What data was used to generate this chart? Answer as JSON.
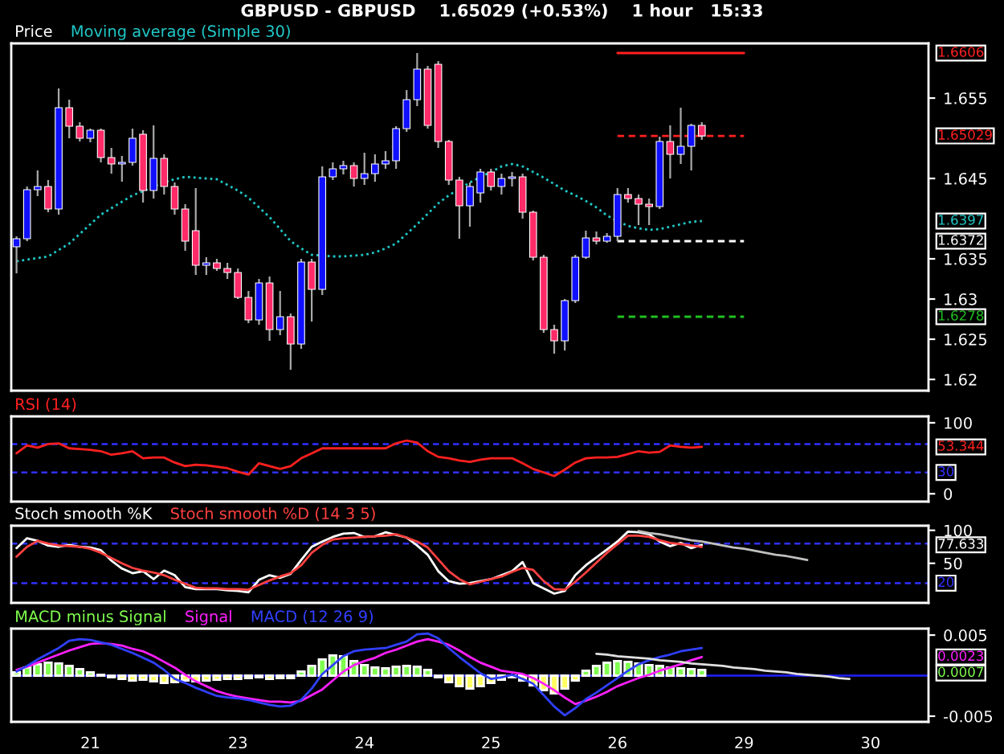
{
  "chart_data": [
    {
      "type": "candlestick",
      "title": "GBPUSD - GBPUSD    1.65029 (+0.53%)    1 hour   15:33",
      "legend_title": "Price",
      "legend": "top left",
      "tick_labels": "y",
      "categories": [
        null,
        null,
        null,
        null,
        null,
        null,
        null,
        "21",
        null,
        null,
        null,
        null,
        null,
        null,
        null,
        null,
        null,
        null,
        null,
        null,
        null,
        "23",
        null,
        null,
        null,
        null,
        null,
        null,
        null,
        null,
        null,
        null,
        null,
        "24",
        null,
        null,
        null,
        null,
        null,
        null,
        null,
        null,
        null,
        null,
        null,
        "25",
        null,
        null,
        null,
        null,
        null,
        null,
        null,
        null,
        null,
        null,
        null,
        "26",
        null,
        null,
        null,
        null,
        null,
        null,
        null,
        null,
        null,
        null,
        null,
        "29",
        null,
        null,
        null,
        null,
        null,
        null,
        null,
        null,
        null,
        null,
        null,
        "30",
        null,
        null,
        null,
        null,
        null
      ],
      "ohlc": [
        [
          1.6365,
          1.6378,
          1.6332,
          1.6375
        ],
        [
          1.6375,
          1.644,
          1.6372,
          1.6436
        ],
        [
          1.6436,
          1.646,
          1.6428,
          1.644
        ],
        [
          1.644,
          1.6448,
          1.6408,
          1.6412
        ],
        [
          1.6412,
          1.6562,
          1.6405,
          1.6538
        ],
        [
          1.6538,
          1.6548,
          1.65,
          1.6515
        ],
        [
          1.6515,
          1.652,
          1.6496,
          1.65
        ],
        [
          1.65,
          1.6512,
          1.6495,
          1.651
        ],
        [
          1.651,
          1.6512,
          1.647,
          1.6476
        ],
        [
          1.6476,
          1.6488,
          1.6456,
          1.6468
        ],
        [
          1.6468,
          1.6478,
          1.6446,
          1.647
        ],
        [
          1.647,
          1.6512,
          1.6466,
          1.65
        ],
        [
          1.6505,
          1.651,
          1.642,
          1.6435
        ],
        [
          1.6435,
          1.6516,
          1.6425,
          1.6475
        ],
        [
          1.6475,
          1.648,
          1.643,
          1.644
        ],
        [
          1.644,
          1.6445,
          1.6405,
          1.6412
        ],
        [
          1.6412,
          1.6418,
          1.636,
          1.6372
        ],
        [
          1.6385,
          1.6438,
          1.633,
          1.6342
        ],
        [
          1.6342,
          1.6352,
          1.633,
          1.6345
        ],
        [
          1.6345,
          1.635,
          1.6335,
          1.6338
        ],
        [
          1.6338,
          1.6345,
          1.6325,
          1.6333
        ],
        [
          1.6333,
          1.6338,
          1.63,
          1.6302
        ],
        [
          1.6302,
          1.631,
          1.627,
          1.6274
        ],
        [
          1.6274,
          1.6325,
          1.6268,
          1.632
        ],
        [
          1.632,
          1.6328,
          1.6248,
          1.6262
        ],
        [
          1.6262,
          1.631,
          1.6255,
          1.6278
        ],
        [
          1.6278,
          1.6282,
          1.6212,
          1.6244
        ],
        [
          1.6244,
          1.635,
          1.6238,
          1.6346
        ],
        [
          1.6346,
          1.635,
          1.6272,
          1.6312
        ],
        [
          1.6312,
          1.6465,
          1.6305,
          1.6452
        ],
        [
          1.6452,
          1.647,
          1.6448,
          1.6462
        ],
        [
          1.6462,
          1.6472,
          1.6455,
          1.6466
        ],
        [
          1.6466,
          1.647,
          1.644,
          1.645
        ],
        [
          1.645,
          1.6482,
          1.6442,
          1.6456
        ],
        [
          1.6456,
          1.648,
          1.6446,
          1.6468
        ],
        [
          1.6468,
          1.6484,
          1.6462,
          1.6472
        ],
        [
          1.6472,
          1.6515,
          1.6462,
          1.6512
        ],
        [
          1.6512,
          1.656,
          1.6508,
          1.6548
        ],
        [
          1.6548,
          1.6606,
          1.654,
          1.6586
        ],
        [
          1.6586,
          1.659,
          1.6512,
          1.6516
        ],
        [
          1.6592,
          1.6596,
          1.6488,
          1.6496
        ],
        [
          1.6496,
          1.6498,
          1.6442,
          1.6448
        ],
        [
          1.6448,
          1.6452,
          1.6375,
          1.6416
        ],
        [
          1.6416,
          1.6445,
          1.639,
          1.644
        ],
        [
          1.6432,
          1.6462,
          1.642,
          1.6458
        ],
        [
          1.6458,
          1.6462,
          1.6435,
          1.644
        ],
        [
          1.644,
          1.6456,
          1.643,
          1.645
        ],
        [
          1.645,
          1.6458,
          1.644,
          1.6452
        ],
        [
          1.6452,
          1.6456,
          1.64,
          1.6408
        ],
        [
          1.6408,
          1.641,
          1.6348,
          1.6352
        ],
        [
          1.6352,
          1.6355,
          1.6258,
          1.6262
        ],
        [
          1.6262,
          1.6268,
          1.6232,
          1.6248
        ],
        [
          1.6248,
          1.63,
          1.6236,
          1.6298
        ],
        [
          1.6298,
          1.6355,
          1.6295,
          1.6352
        ],
        [
          1.6352,
          1.6385,
          1.635,
          1.6376
        ],
        [
          1.6376,
          1.6384,
          1.6368,
          1.6372
        ],
        [
          1.6372,
          1.6382,
          1.637,
          1.6378
        ],
        [
          1.6378,
          1.6438,
          1.6372,
          1.643
        ],
        [
          1.643,
          1.6438,
          1.642,
          1.6425
        ],
        [
          1.6425,
          1.643,
          1.6392,
          1.6418
        ],
        [
          1.6418,
          1.6425,
          1.6392,
          1.6415
        ],
        [
          1.6415,
          1.6502,
          1.6412,
          1.6496
        ],
        [
          1.6496,
          1.6516,
          1.645,
          1.648
        ],
        [
          1.648,
          1.6538,
          1.6468,
          1.649
        ],
        [
          1.649,
          1.6518,
          1.646,
          1.6516
        ],
        [
          1.6516,
          1.652,
          1.6498,
          1.65029
        ],
        null,
        null,
        null,
        null,
        null,
        null,
        null,
        null,
        null,
        null,
        null,
        null,
        null,
        null,
        null,
        null,
        null,
        null,
        null,
        null,
        null
      ],
      "series": [
        {
          "name": "Moving average (Simple 30)",
          "type": "line",
          "color": "#20c8c8",
          "line_style": "dotted",
          "values": [
            1.6347,
            1.6349,
            1.6351,
            1.6353,
            1.6361,
            1.6369,
            1.6381,
            1.6393,
            1.6405,
            1.6413,
            1.6421,
            1.6429,
            1.6434,
            1.644,
            1.6445,
            1.6449,
            1.6452,
            1.6451,
            1.645,
            1.6449,
            1.6442,
            1.6435,
            1.6426,
            1.6414,
            1.6402,
            1.6387,
            1.6372,
            1.6363,
            1.6355,
            1.6354,
            1.6353,
            1.6353,
            1.6354,
            1.6355,
            1.6358,
            1.6363,
            1.6369,
            1.6381,
            1.6393,
            1.6406,
            1.6419,
            1.6429,
            1.6437,
            1.6445,
            1.6452,
            1.6458,
            1.6465,
            1.6468,
            1.6465,
            1.6458,
            1.6451,
            1.6443,
            1.6435,
            1.6429,
            1.6422,
            1.6414,
            1.6404,
            1.6397,
            1.6391,
            1.6388,
            1.6386,
            1.6387,
            1.639,
            1.6393,
            1.6396,
            1.6397,
            null,
            null,
            null,
            null,
            null,
            null,
            null,
            null,
            null,
            null,
            null,
            null,
            null,
            null,
            null,
            null,
            null,
            null,
            null,
            null,
            null
          ]
        },
        {
          "type": "line",
          "color": "#ff2020",
          "line_style": "solid",
          "values": [
            null,
            null,
            null,
            null,
            null,
            null,
            null,
            null,
            null,
            null,
            null,
            null,
            null,
            null,
            null,
            null,
            null,
            null,
            null,
            null,
            null,
            null,
            null,
            null,
            null,
            null,
            null,
            null,
            null,
            null,
            null,
            null,
            null,
            null,
            null,
            null,
            null,
            null,
            null,
            null,
            null,
            null,
            null,
            null,
            null,
            null,
            null,
            null,
            null,
            null,
            null,
            null,
            null,
            null,
            null,
            null,
            null,
            1.6606,
            1.6606,
            1.6606,
            1.6606,
            1.6606,
            1.6606,
            1.6606,
            1.6606,
            1.6606,
            1.6606,
            1.6606,
            1.6606,
            1.6606,
            null,
            null,
            null,
            null,
            null,
            null,
            null,
            null,
            null,
            null,
            null,
            null,
            null,
            null,
            null,
            null,
            null
          ]
        },
        {
          "type": "line",
          "color": "#ff2020",
          "line_style": "dashed",
          "values": [
            null,
            null,
            null,
            null,
            null,
            null,
            null,
            null,
            null,
            null,
            null,
            null,
            null,
            null,
            null,
            null,
            null,
            null,
            null,
            null,
            null,
            null,
            null,
            null,
            null,
            null,
            null,
            null,
            null,
            null,
            null,
            null,
            null,
            null,
            null,
            null,
            null,
            null,
            null,
            null,
            null,
            null,
            null,
            null,
            null,
            null,
            null,
            null,
            null,
            null,
            null,
            null,
            null,
            null,
            null,
            null,
            null,
            1.65029,
            1.65029,
            1.65029,
            1.65029,
            1.65029,
            1.65029,
            1.65029,
            1.65029,
            1.65029,
            1.65029,
            1.65029,
            1.65029,
            1.65029,
            null,
            null,
            null,
            null,
            null,
            null,
            null,
            null,
            null,
            null,
            null,
            null,
            null,
            null,
            null,
            null,
            null
          ]
        },
        {
          "type": "line",
          "color": "#ffffff",
          "line_style": "dashed",
          "values": [
            null,
            null,
            null,
            null,
            null,
            null,
            null,
            null,
            null,
            null,
            null,
            null,
            null,
            null,
            null,
            null,
            null,
            null,
            null,
            null,
            null,
            null,
            null,
            null,
            null,
            null,
            null,
            null,
            null,
            null,
            null,
            null,
            null,
            null,
            null,
            null,
            null,
            null,
            null,
            null,
            null,
            null,
            null,
            null,
            null,
            null,
            null,
            null,
            null,
            null,
            null,
            null,
            null,
            null,
            null,
            null,
            null,
            1.6372,
            1.6372,
            1.6372,
            1.6372,
            1.6372,
            1.6372,
            1.6372,
            1.6372,
            1.6372,
            1.6372,
            1.6372,
            1.6372,
            1.6372,
            null,
            null,
            null,
            null,
            null,
            null,
            null,
            null,
            null,
            null,
            null,
            null,
            null,
            null,
            null,
            null,
            null
          ]
        },
        {
          "type": "line",
          "color": "#20c020",
          "line_style": "dashed",
          "values": [
            null,
            null,
            null,
            null,
            null,
            null,
            null,
            null,
            null,
            null,
            null,
            null,
            null,
            null,
            null,
            null,
            null,
            null,
            null,
            null,
            null,
            null,
            null,
            null,
            null,
            null,
            null,
            null,
            null,
            null,
            null,
            null,
            null,
            null,
            null,
            null,
            null,
            null,
            null,
            null,
            null,
            null,
            null,
            null,
            null,
            null,
            null,
            null,
            null,
            null,
            null,
            null,
            null,
            null,
            null,
            null,
            null,
            1.6278,
            1.6278,
            1.6278,
            1.6278,
            1.6278,
            1.6278,
            1.6278,
            1.6278,
            1.6278,
            1.6278,
            1.6278,
            1.6278,
            1.6278,
            null,
            null,
            null,
            null,
            null,
            null,
            null,
            null,
            null,
            null,
            null,
            null,
            null,
            null,
            null,
            null,
            null
          ]
        }
      ],
      "annotations": [
        "1.6397",
        "1.6606",
        "1.65029",
        "1.6372",
        "1.6278"
      ],
      "ylim": [
        1.6186,
        1.6618
      ],
      "yticks": [
        1.62,
        1.625,
        1.63,
        1.635,
        1.645,
        1.655
      ]
    },
    {
      "type": "line",
      "legend": "top left",
      "tick_labels": "y",
      "categories": [
        null,
        null,
        null,
        null,
        null,
        null,
        null,
        "21",
        null,
        null,
        null,
        null,
        null,
        null,
        null,
        null,
        null,
        null,
        null,
        null,
        null,
        "23",
        null,
        null,
        null,
        null,
        null,
        null,
        null,
        null,
        null,
        null,
        null,
        "24",
        null,
        null,
        null,
        null,
        null,
        null,
        null,
        null,
        null,
        null,
        null,
        "25",
        null,
        null,
        null,
        null,
        null,
        null,
        null,
        null,
        null,
        null,
        null,
        "26",
        null,
        null,
        null,
        null,
        null,
        null,
        null,
        null,
        null,
        null,
        null,
        "29",
        null,
        null,
        null,
        null,
        null,
        null,
        null,
        null,
        null,
        null,
        null,
        "30",
        null,
        null,
        null,
        null,
        null
      ],
      "series": [
        {
          "name": "RSI (14)",
          "color": "#ff2020",
          "values": [
            57,
            68,
            65,
            70,
            71,
            64,
            63,
            62,
            60,
            55,
            57,
            60,
            50,
            51,
            51,
            44,
            39,
            41,
            40,
            38,
            36,
            31,
            27,
            43,
            39,
            35,
            39,
            50,
            57,
            64,
            64,
            64,
            64,
            64,
            64,
            64,
            71,
            75,
            72,
            60,
            52,
            50,
            47,
            45,
            48,
            50,
            50,
            50,
            43,
            35,
            30,
            25,
            34,
            44,
            50,
            51,
            51,
            52,
            56,
            60,
            58,
            59,
            68,
            66,
            65,
            66,
            null,
            null,
            null,
            null,
            null,
            null,
            null,
            null,
            null,
            null,
            null,
            null,
            null,
            null,
            null,
            null,
            null,
            null,
            null,
            null,
            null
          ]
        }
      ],
      "ref_lines": [
        {
          "axis": "y",
          "value": 70,
          "label": null,
          "color": "#3030ff",
          "line_style": "dashed"
        },
        {
          "axis": "y",
          "value": 30,
          "label": "30",
          "color": "#3030ff",
          "line_style": "dashed"
        }
      ],
      "annotations": [
        "53.344"
      ],
      "ylim": [
        -11,
        109
      ],
      "yticks": [
        0,
        100
      ]
    },
    {
      "type": "line",
      "legend": "top left",
      "tick_labels": "y",
      "categories": [
        null,
        null,
        null,
        null,
        null,
        null,
        null,
        "21",
        null,
        null,
        null,
        null,
        null,
        null,
        null,
        null,
        null,
        null,
        null,
        null,
        null,
        "23",
        null,
        null,
        null,
        null,
        null,
        null,
        null,
        null,
        null,
        null,
        null,
        "24",
        null,
        null,
        null,
        null,
        null,
        null,
        null,
        null,
        null,
        null,
        null,
        "25",
        null,
        null,
        null,
        null,
        null,
        null,
        null,
        null,
        null,
        null,
        null,
        "26",
        null,
        null,
        null,
        null,
        null,
        null,
        null,
        null,
        null,
        null,
        null,
        "29",
        null,
        null,
        null,
        null,
        null,
        null,
        null,
        null,
        null,
        null,
        null,
        "30",
        null,
        null,
        null,
        null,
        null
      ],
      "series": [
        {
          "name": "Stoch smooth %K",
          "color": "#ffffff",
          "values": [
            73,
            88,
            84,
            77,
            75,
            78,
            75,
            74,
            70,
            54,
            42,
            35,
            38,
            26,
            39,
            32,
            14,
            11,
            11,
            11,
            9,
            8,
            6,
            25,
            32,
            28,
            34,
            55,
            75,
            83,
            90,
            95,
            96,
            90,
            91,
            97,
            93,
            89,
            77,
            63,
            38,
            23,
            19,
            20,
            23,
            26,
            32,
            38,
            52,
            20,
            12,
            4,
            8,
            32,
            47,
            59,
            71,
            83,
            98,
            97,
            94,
            83,
            76,
            81,
            73,
            78,
            null,
            null,
            null,
            null,
            null,
            null,
            null,
            null,
            null,
            null,
            null,
            null,
            null,
            null,
            null,
            null,
            null,
            null,
            null,
            null,
            null
          ]
        },
        {
          "name": "Stoch smooth %D (14 3 5)",
          "color": "#ff4040",
          "values": [
            60,
            75,
            84,
            80,
            77,
            76,
            75,
            72,
            66,
            58,
            50,
            43,
            39,
            36,
            32,
            25,
            19,
            13,
            12,
            12,
            11,
            11,
            10,
            17,
            24,
            30,
            35,
            47,
            66,
            78,
            86,
            88,
            89,
            90,
            91,
            92,
            94,
            89,
            83,
            74,
            56,
            38,
            26,
            18,
            22,
            26,
            30,
            37,
            43,
            40,
            23,
            11,
            10,
            22,
            36,
            51,
            66,
            79,
            92,
            92,
            90,
            85,
            81,
            79,
            77,
            75,
            null,
            null,
            null,
            null,
            null,
            null,
            null,
            null,
            null,
            null,
            null,
            null,
            null,
            null,
            null,
            null,
            null,
            null,
            null,
            null,
            null
          ]
        },
        {
          "type": "line",
          "color": "#c0c0c0",
          "values": [
            null,
            null,
            null,
            null,
            null,
            null,
            null,
            null,
            null,
            null,
            null,
            null,
            null,
            null,
            null,
            null,
            null,
            null,
            null,
            null,
            null,
            null,
            null,
            null,
            null,
            null,
            null,
            null,
            null,
            null,
            null,
            null,
            null,
            null,
            null,
            null,
            null,
            null,
            null,
            null,
            null,
            null,
            null,
            null,
            null,
            null,
            null,
            null,
            null,
            null,
            null,
            null,
            null,
            null,
            null,
            null,
            null,
            null,
            null,
            99,
            96,
            94,
            91,
            88,
            85,
            83,
            80,
            77,
            74,
            72,
            69,
            66,
            63,
            61,
            58,
            55,
            null,
            null,
            null,
            null,
            null,
            null,
            null,
            null,
            null,
            null,
            null
          ]
        }
      ],
      "ref_lines": [
        {
          "axis": "y",
          "value": 80,
          "label": null,
          "color": "#3030ff",
          "line_style": "dashed"
        },
        {
          "axis": "y",
          "value": 20,
          "label": "20",
          "color": "#3030ff",
          "line_style": "dashed"
        }
      ],
      "annotations": [
        "77.633"
      ],
      "ylim": [
        -10,
        107
      ],
      "yticks": [
        50,
        100
      ]
    },
    {
      "type": "bar",
      "legend": "top left",
      "categories": [
        null,
        null,
        null,
        null,
        null,
        null,
        null,
        "21",
        null,
        null,
        null,
        null,
        null,
        null,
        null,
        null,
        null,
        null,
        null,
        null,
        null,
        "23",
        null,
        null,
        null,
        null,
        null,
        null,
        null,
        null,
        null,
        null,
        null,
        "24",
        null,
        null,
        null,
        null,
        null,
        null,
        null,
        null,
        null,
        null,
        null,
        "25",
        null,
        null,
        null,
        null,
        null,
        null,
        null,
        null,
        null,
        null,
        null,
        "26",
        null,
        null,
        null,
        null,
        null,
        null,
        null,
        null,
        null,
        null,
        null,
        "29",
        null,
        null,
        null,
        null,
        null,
        null,
        null,
        null,
        null,
        null,
        null,
        "30",
        null,
        null,
        null,
        null,
        null
      ],
      "series": [
        {
          "name": "MACD minus Signal",
          "type": "bar",
          "color": "#80ff50",
          "values": [
            0.0004,
            0.001,
            0.0014,
            0.0016,
            0.0015,
            0.0012,
            0.0008,
            0.0004,
            0.0001,
            -0.0002,
            -0.0004,
            -0.0006,
            -0.0005,
            -0.0007,
            -0.0009,
            -0.0008,
            -0.0006,
            -0.0007,
            -0.0006,
            -0.0005,
            -0.0004,
            -0.0004,
            -0.0003,
            -0.0002,
            -0.0004,
            -0.0003,
            -0.0003,
            0.0005,
            0.0012,
            0.002,
            0.0025,
            0.0024,
            0.0018,
            0.0013,
            0.001,
            0.0009,
            0.0011,
            0.0012,
            0.0011,
            0.0007,
            -0.0002,
            -0.0008,
            -0.0013,
            -0.0016,
            -0.0013,
            -0.0009,
            -0.0005,
            -0.0002,
            -0.0006,
            -0.0012,
            -0.0018,
            -0.0022,
            -0.0016,
            -0.0006,
            0.0006,
            0.0012,
            0.0016,
            0.0018,
            0.0017,
            0.0015,
            0.0013,
            0.0012,
            0.001,
            0.0009,
            0.0008,
            0.0007,
            null,
            null,
            null,
            null,
            null,
            null,
            null,
            null,
            null,
            null,
            null,
            null,
            null,
            null,
            null,
            null,
            null,
            null,
            null,
            null,
            null
          ],
          "colors": [
            "#80ff50",
            "#80ff50",
            "#80ff50",
            "#80ff50",
            "#80ff50",
            "#80ff50",
            "#80ff50",
            "#80ff50",
            "#80ff50",
            "#ffff60",
            "#ffff60",
            "#ffff60",
            "#ffff60",
            "#ffff60",
            "#ffff60",
            "#ffff60",
            "#ffff60",
            "#ffff60",
            "#ffff60",
            "#ffff60",
            "#ffff60",
            "#ffff60",
            "#ffff60",
            "#ffff60",
            "#ffff60",
            "#ffff60",
            "#ffff60",
            "#80ff50",
            "#80ff50",
            "#80ff50",
            "#80ff50",
            "#80ff50",
            "#80ff50",
            "#80ff50",
            "#80ff50",
            "#80ff50",
            "#80ff50",
            "#80ff50",
            "#80ff50",
            "#80ff50",
            "#ffff60",
            "#ffff60",
            "#ffff60",
            "#ffff60",
            "#ffff60",
            "#ffff60",
            "#ffff60",
            "#ffff60",
            "#ffff60",
            "#ffff60",
            "#ffff60",
            "#ffff60",
            "#ffff60",
            "#ffff60",
            "#80ff50",
            "#80ff50",
            "#80ff50",
            "#80ff50",
            "#80ff50",
            "#80ff50",
            "#80ff50",
            "#80ff50",
            "#80ff50",
            "#80ff50",
            "#80ff50",
            "#80ff50",
            null,
            null,
            null,
            null,
            null,
            null,
            null,
            null,
            null,
            null,
            null,
            null,
            null,
            null,
            null,
            null,
            null,
            null,
            null,
            null,
            null
          ]
        },
        {
          "name": "Signal",
          "type": "line",
          "color": "#ff20ff",
          "values": [
            0.0007,
            0.0011,
            0.0016,
            0.0021,
            0.0026,
            0.0031,
            0.0035,
            0.0039,
            0.004,
            0.0039,
            0.0037,
            0.0033,
            0.003,
            0.0024,
            0.0017,
            0.001,
            0.0001,
            -0.0007,
            -0.0013,
            -0.0019,
            -0.0023,
            -0.0026,
            -0.0028,
            -0.003,
            -0.0032,
            -0.0032,
            -0.0033,
            -0.0031,
            -0.0024,
            -0.0017,
            -0.0006,
            0.0005,
            0.0013,
            0.0018,
            0.0022,
            0.0028,
            0.0032,
            0.0037,
            0.0042,
            0.0045,
            0.0042,
            0.0038,
            0.0031,
            0.0023,
            0.0016,
            0.0011,
            0.0006,
            0.0004,
            0.0002,
            -0.0003,
            -0.001,
            -0.0018,
            -0.0027,
            -0.0035,
            -0.0031,
            -0.0026,
            -0.002,
            -0.0013,
            -0.0008,
            -0.0003,
            0.0001,
            0.0006,
            0.001,
            0.0014,
            0.0019,
            0.0023,
            null,
            null,
            null,
            null,
            null,
            null,
            null,
            null,
            null,
            null,
            null,
            null,
            null,
            null,
            null,
            null,
            null,
            null,
            null,
            null,
            null
          ]
        },
        {
          "name": "MACD (12 26 9)",
          "type": "line",
          "color": "#3040ff",
          "values": [
            0.0005,
            0.0012,
            0.002,
            0.0027,
            0.0034,
            0.0043,
            0.0045,
            0.0044,
            0.0041,
            0.0038,
            0.0033,
            0.0028,
            0.0022,
            0.0016,
            0.0007,
            -0.0004,
            -0.0009,
            -0.0015,
            -0.002,
            -0.0025,
            -0.0027,
            -0.0028,
            -0.003,
            -0.0033,
            -0.0036,
            -0.0038,
            -0.0037,
            -0.003,
            -0.0016,
            0.0002,
            0.0013,
            0.0024,
            0.003,
            0.0032,
            0.0033,
            0.0034,
            0.0038,
            0.0042,
            0.0051,
            0.0052,
            0.0046,
            0.0034,
            0.0023,
            0.0013,
            0.0003,
            -0.0004,
            -0.0002,
            0.0001,
            -0.0004,
            -0.001,
            -0.0024,
            -0.0038,
            -0.0049,
            -0.004,
            -0.0029,
            -0.0021,
            -0.0012,
            -0.0003,
            0.0006,
            0.0014,
            0.0019,
            0.0023,
            0.0026,
            0.003,
            0.0032,
            0.0034,
            null,
            null,
            null,
            null,
            null,
            null,
            null,
            null,
            null,
            null,
            null,
            null,
            null,
            null,
            null,
            null,
            null,
            null,
            null,
            null,
            null
          ]
        },
        {
          "type": "line",
          "color": "#e0e0e0",
          "values": [
            null,
            null,
            null,
            null,
            null,
            null,
            null,
            null,
            null,
            null,
            null,
            null,
            null,
            null,
            null,
            null,
            null,
            null,
            null,
            null,
            null,
            null,
            null,
            null,
            null,
            null,
            null,
            null,
            null,
            null,
            null,
            null,
            null,
            null,
            null,
            null,
            null,
            null,
            null,
            null,
            null,
            null,
            null,
            null,
            null,
            null,
            null,
            null,
            null,
            null,
            null,
            null,
            null,
            null,
            null,
            0.0027,
            0.0026,
            0.0024,
            0.0023,
            0.0022,
            0.0021,
            0.0019,
            0.0018,
            0.0017,
            0.0015,
            0.0014,
            0.0013,
            0.0012,
            0.001,
            0.0009,
            0.0008,
            0.0006,
            0.0005,
            0.0004,
            0.0002,
            0.0001,
            0.0,
            -0.0001,
            -0.0003,
            -0.0004,
            null,
            null,
            null,
            null,
            null,
            null,
            null
          ]
        }
      ],
      "ref_lines": [
        {
          "axis": "y",
          "value": 0,
          "label": null,
          "color": "#2020ff",
          "line_style": "solid"
        }
      ],
      "annotations": [
        "0.0007",
        "0.0023"
      ],
      "ylim": [
        -0.0057,
        0.0058
      ],
      "yticks": [
        -0.005,
        0.005
      ]
    }
  ]
}
